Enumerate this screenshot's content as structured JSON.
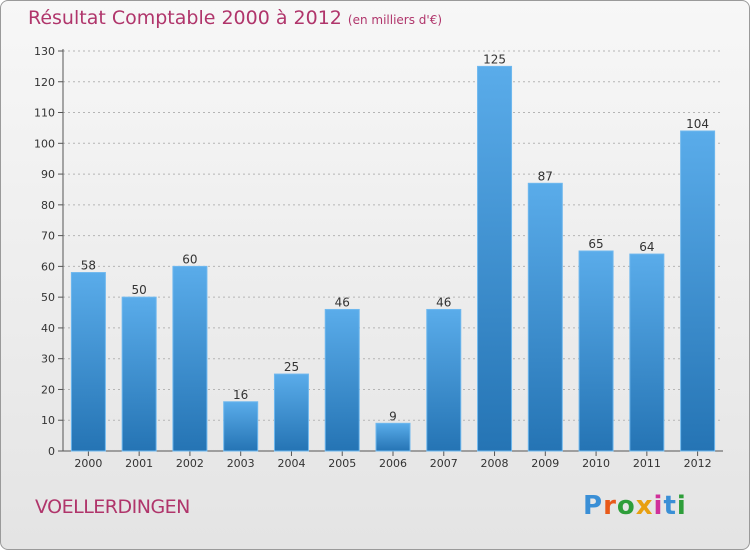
{
  "header": {
    "title": "Résultat Comptable 2000 à 2012",
    "subtitle": "(en milliers d'€)"
  },
  "footer": {
    "commune": "VOELLERDINGEN",
    "logo_text": "Proxiti"
  },
  "colors": {
    "title": "#b0356b",
    "bar_top": "#5aacea",
    "bar_bottom": "#2574b4",
    "logo_letters": [
      "#3a8fd6",
      "#e85a1a",
      "#2e9e3a",
      "#e8a010",
      "#d0309a",
      "#3a8fd6",
      "#2e9e3a"
    ]
  },
  "chart_data": {
    "type": "bar",
    "categories": [
      "2000",
      "2001",
      "2002",
      "2003",
      "2004",
      "2005",
      "2006",
      "2007",
      "2008",
      "2009",
      "2010",
      "2011",
      "2012"
    ],
    "values": [
      58,
      50,
      60,
      16,
      25,
      46,
      9,
      46,
      125,
      87,
      65,
      64,
      104
    ],
    "title": "Résultat Comptable 2000 à 2012",
    "ylim": [
      0,
      130
    ],
    "yticks": [
      0,
      10,
      20,
      30,
      40,
      50,
      60,
      70,
      80,
      90,
      100,
      110,
      120,
      130
    ],
    "grid": "horizontal dashed",
    "legend": "none"
  }
}
